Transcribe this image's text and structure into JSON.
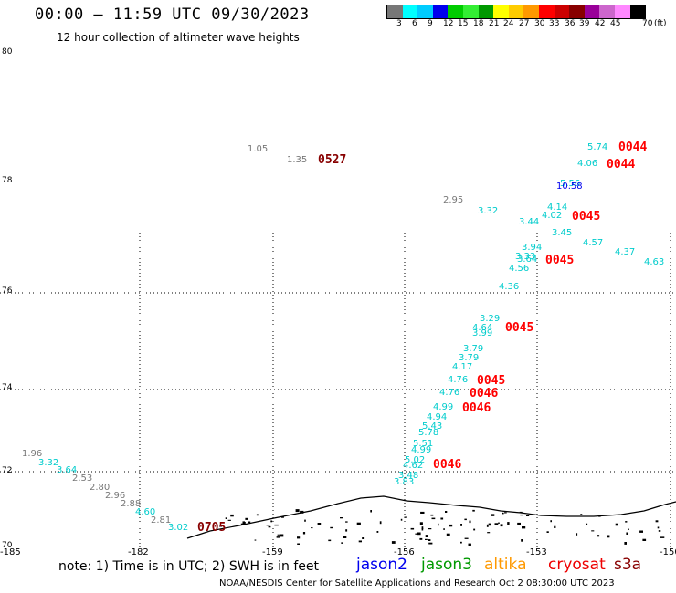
{
  "title": "00:00 – 11:59 UTC 09/30/2023",
  "subtitle": "12 hour collection of altimeter wave heights",
  "color_scale": {
    "swatches": [
      "#777777",
      "#00ffff",
      "#00ccff",
      "#0000ee",
      "#00cc00",
      "#33ee33",
      "#009900",
      "#ffff00",
      "#ffcc00",
      "#ff9900",
      "#ff0000",
      "#cc0000",
      "#880000",
      "#990099",
      "#cc66cc",
      "#ff88ff",
      "#000000"
    ],
    "labels": [
      "3",
      "6",
      "9",
      "12",
      "15",
      "18",
      "21",
      "24",
      "27",
      "30",
      "33",
      "36",
      "39",
      "42",
      "45",
      "70",
      "(ft)"
    ]
  },
  "axes": {
    "y_labels": [
      "80",
      "78",
      "76",
      "74",
      "72",
      "70"
    ],
    "x_labels": [
      "-185",
      "-182",
      "-159",
      "-156",
      "-153",
      "-150"
    ]
  },
  "observations": [
    {
      "v": "1.05",
      "c": "#777777"
    },
    {
      "v": "1.35",
      "c": "#777777"
    },
    {
      "v": "0527",
      "c": "#880000",
      "time": true
    },
    {
      "v": "5.74",
      "c": "#00cccc"
    },
    {
      "v": "0044",
      "c": "#ff0000",
      "time": true
    },
    {
      "v": "4.06",
      "c": "#00cccc"
    },
    {
      "v": "0044",
      "c": "#ff0000",
      "time": true
    },
    {
      "v": "5.56",
      "c": "#00cccc"
    },
    {
      "v": "10.58",
      "c": "#0000ee"
    },
    {
      "v": "2.95",
      "c": "#777777"
    },
    {
      "v": "3.32",
      "c": "#00cccc"
    },
    {
      "v": "4.14",
      "c": "#00cccc"
    },
    {
      "v": "4.02",
      "c": "#00cccc"
    },
    {
      "v": "3.44",
      "c": "#00cccc"
    },
    {
      "v": "0045",
      "c": "#ff0000",
      "time": true
    },
    {
      "v": "3.45",
      "c": "#00cccc"
    },
    {
      "v": "4.57",
      "c": "#00cccc"
    },
    {
      "v": "4.37",
      "c": "#00cccc"
    },
    {
      "v": "4.63",
      "c": "#00cccc"
    },
    {
      "v": "3.94",
      "c": "#00cccc"
    },
    {
      "v": "3.33",
      "c": "#00cccc"
    },
    {
      "v": "3.64",
      "c": "#00cccc"
    },
    {
      "v": "0045",
      "c": "#ff0000",
      "time": true
    },
    {
      "v": "4.56",
      "c": "#00cccc"
    },
    {
      "v": "4.36",
      "c": "#00cccc"
    },
    {
      "v": "3.29",
      "c": "#00cccc"
    },
    {
      "v": "4.64",
      "c": "#00cccc"
    },
    {
      "v": "3.99",
      "c": "#00cccc"
    },
    {
      "v": "0045",
      "c": "#ff0000",
      "time": true
    },
    {
      "v": "3.79",
      "c": "#00cccc"
    },
    {
      "v": "3.79",
      "c": "#00cccc"
    },
    {
      "v": "4.17",
      "c": "#00cccc"
    },
    {
      "v": "4.76",
      "c": "#00cccc"
    },
    {
      "v": "0045",
      "c": "#ff0000",
      "time": true
    },
    {
      "v": "4.76",
      "c": "#00cccc"
    },
    {
      "v": "0046",
      "c": "#ff0000",
      "time": true
    },
    {
      "v": "4.99",
      "c": "#00cccc"
    },
    {
      "v": "0046",
      "c": "#ff0000",
      "time": true
    },
    {
      "v": "4.94",
      "c": "#00cccc"
    },
    {
      "v": "5.43",
      "c": "#00cccc"
    },
    {
      "v": "5.78",
      "c": "#00cccc"
    },
    {
      "v": "5.51",
      "c": "#00cccc"
    },
    {
      "v": "4.99",
      "c": "#00cccc"
    },
    {
      "v": "5.02",
      "c": "#00cccc"
    },
    {
      "v": "4.62",
      "c": "#00cccc"
    },
    {
      "v": "0046",
      "c": "#ff0000",
      "time": true
    },
    {
      "v": "3.48",
      "c": "#00cccc"
    },
    {
      "v": "3.83",
      "c": "#00cccc"
    },
    {
      "v": "1.96",
      "c": "#777777"
    },
    {
      "v": "3.32",
      "c": "#00cccc"
    },
    {
      "v": "3.64",
      "c": "#00cccc"
    },
    {
      "v": "2.53",
      "c": "#777777"
    },
    {
      "v": "2.80",
      "c": "#777777"
    },
    {
      "v": "2.96",
      "c": "#777777"
    },
    {
      "v": "2.88",
      "c": "#777777"
    },
    {
      "v": "4.60",
      "c": "#00cccc"
    },
    {
      "v": "2.81",
      "c": "#777777"
    },
    {
      "v": "3.02",
      "c": "#00cccc"
    },
    {
      "v": "0705",
      "c": "#880000",
      "time": true
    }
  ],
  "note": "note:  1) Time is in UTC;  2) SWH is in feet",
  "missions": [
    {
      "name": "jason2",
      "color": "#0000ee"
    },
    {
      "name": "jason3",
      "color": "#009900"
    },
    {
      "name": "altika",
      "color": "#ff9900"
    },
    {
      "name": "cryosat",
      "color": "#ee0000"
    },
    {
      "name": "s3a",
      "color": "#880000"
    }
  ],
  "credit": "NOAA/NESDIS Center for Satellite Applications and Research    Oct  2 08:30:00 UTC 2023"
}
